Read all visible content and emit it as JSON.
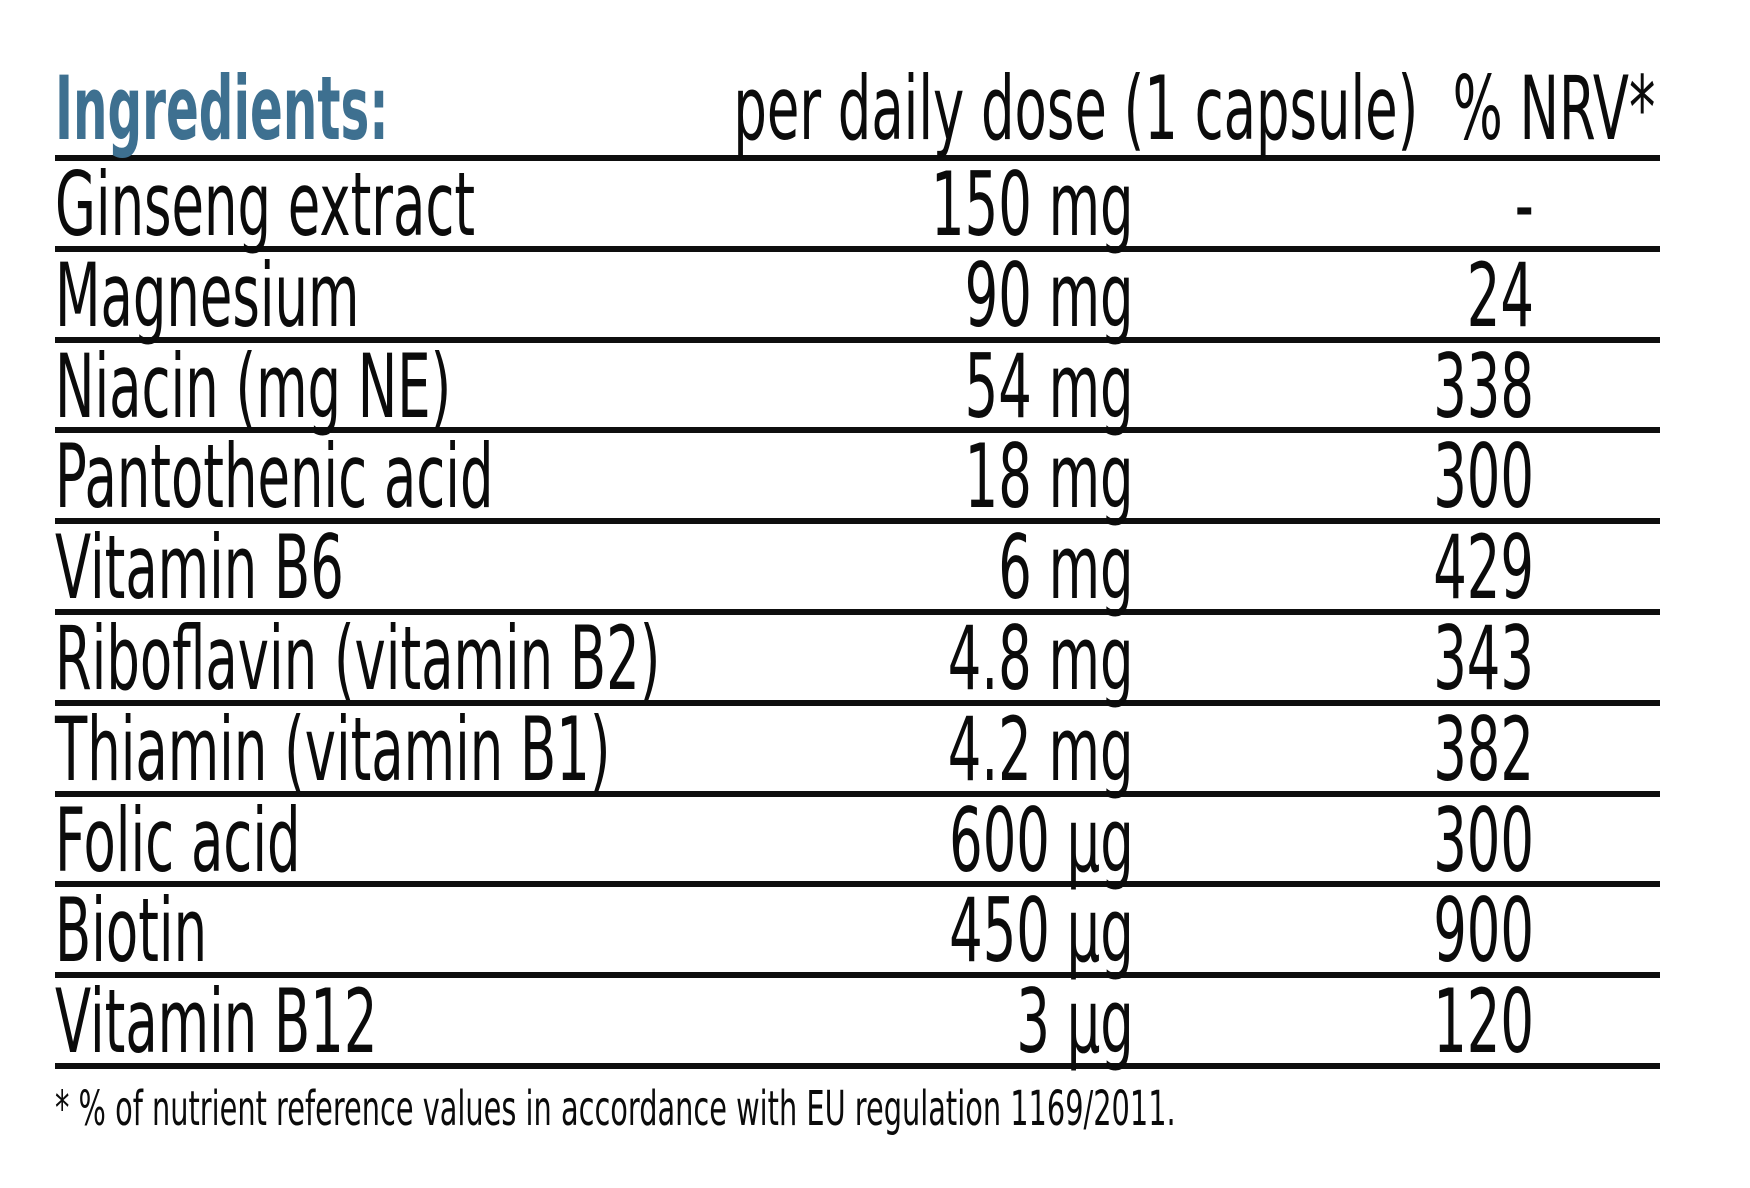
{
  "table": {
    "header": {
      "ingredients_label": "Ingredients:",
      "dose_label": "per daily dose (1 capsule)",
      "nrv_label": "% NRV*"
    },
    "columns": [
      "Ingredients",
      "per daily dose (1 capsule)",
      "% NRV*"
    ],
    "rows": [
      {
        "name": "Ginseng extract",
        "amount": "150 mg",
        "nrv": "-"
      },
      {
        "name": "Magnesium",
        "amount": "90 mg",
        "nrv": "24"
      },
      {
        "name": "Niacin (mg NE)",
        "amount": "54 mg",
        "nrv": "338"
      },
      {
        "name": "Pantothenic acid",
        "amount": "18 mg",
        "nrv": "300"
      },
      {
        "name": "Vitamin B6",
        "amount": "6 mg",
        "nrv": "429"
      },
      {
        "name": "Riboflavin (vitamin B2)",
        "amount": "4.8 mg",
        "nrv": "343"
      },
      {
        "name": "Thiamin (vitamin B1)",
        "amount": "4.2 mg",
        "nrv": "382"
      },
      {
        "name": "Folic acid",
        "amount": "600 µg",
        "nrv": "300"
      },
      {
        "name": "Biotin",
        "amount": "450 µg",
        "nrv": "900"
      },
      {
        "name": "Vitamin B12",
        "amount": "3 µg",
        "nrv": "120"
      }
    ],
    "footnote": "* % of nutrient reference values in accordance with EU regulation 1169/2011."
  },
  "colors": {
    "accent_blue": "#3e7090",
    "text": "#0b0b0b",
    "rule_lines": "#0e0e0e",
    "background": "#ffffff"
  }
}
